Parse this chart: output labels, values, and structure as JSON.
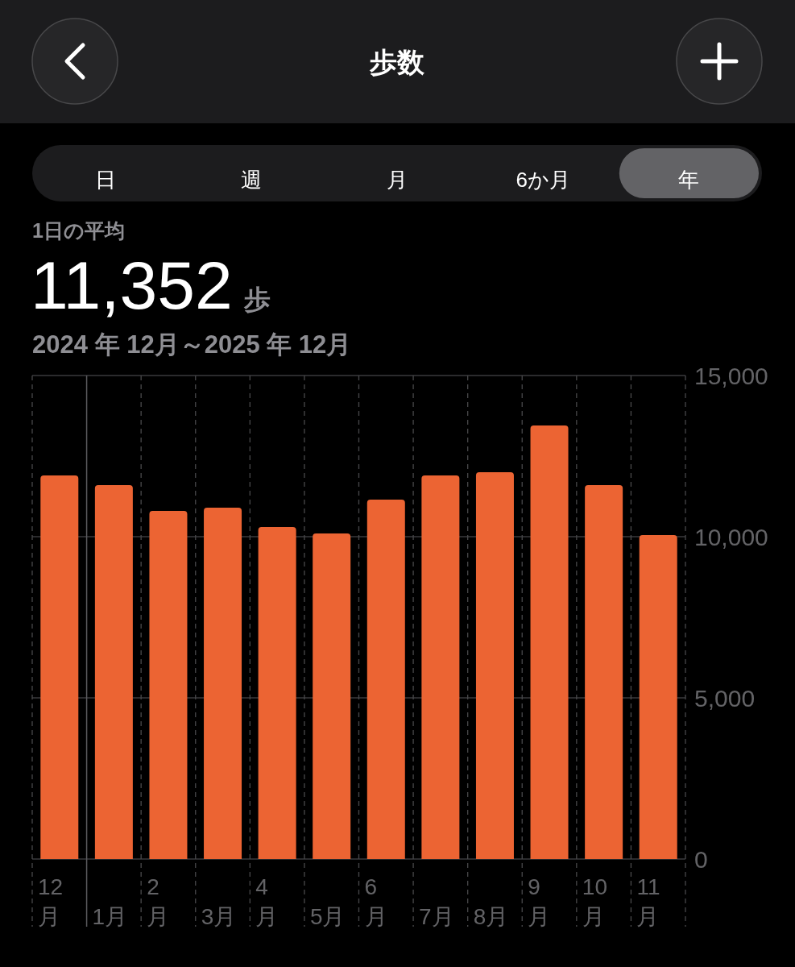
{
  "chart_data": {
    "type": "bar",
    "title": "歩数",
    "subtitle": "2024 年 12月～2025 年 12月",
    "annotations": [
      "日",
      "週",
      "月",
      "6か月",
      "年",
      "1日の平均",
      "11,352",
      "歩"
    ],
    "categories": [
      "12\n月",
      "1月",
      "2\n月",
      "3月",
      "4\n月",
      "5月",
      "6\n月",
      "7月",
      "8月",
      "9\n月",
      "10\n月",
      "11\n月"
    ],
    "values": [
      11900,
      11600,
      10800,
      10900,
      10300,
      10100,
      11150,
      11900,
      12000,
      13450,
      11600,
      10050
    ],
    "color": "#ec6433",
    "ylim": [
      0,
      15000
    ],
    "yticks": [
      0,
      {
        "value": 5000,
        "label": "5,000"
      },
      {
        "value": 10000,
        "label": "10,000"
      },
      {
        "value": 15000,
        "label": "15,000"
      }
    ],
    "ref_lines": [
      {
        "axis": "x",
        "value": "1月",
        "line_style": "solid"
      }
    ],
    "grid": true
  }
}
